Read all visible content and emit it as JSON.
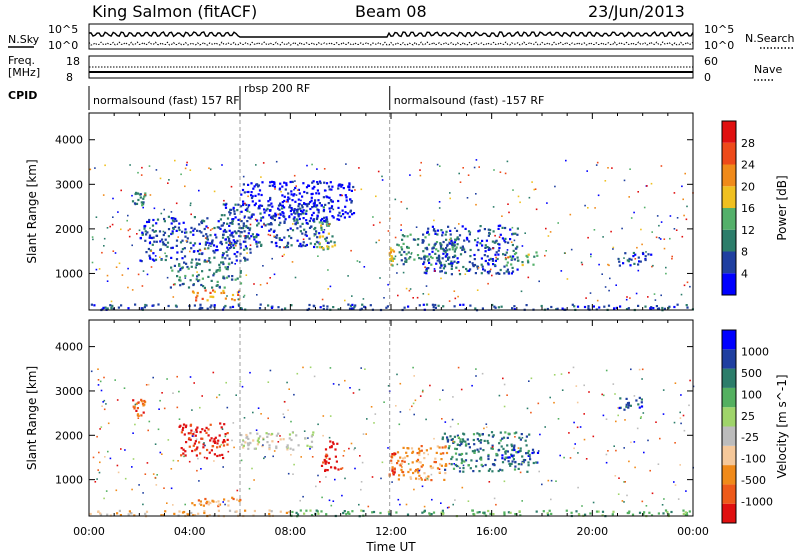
{
  "header": {
    "station": "King Salmon (fitACF)",
    "beam": "Beam 08",
    "date": "23/Jun/2013"
  },
  "top_panels": {
    "nsky_label": "N.Sky",
    "nsearch_label": "N.Search",
    "nsky_ticks": [
      "10^5",
      "10^0"
    ],
    "nsearch_ticks": [
      "10^5",
      "10^0"
    ],
    "freq_label_1": "Freq.",
    "freq_label_2": "[MHz]",
    "freq_ticks": [
      "18",
      "8"
    ],
    "nave_label": "Nave",
    "nave_ticks": [
      "60",
      "0"
    ],
    "cpid_label": "CPID",
    "cpid_segments": [
      {
        "text": "normalsound (fast) 157 RF",
        "start_hour": 0,
        "end_hour": 6.0
      },
      {
        "text": "rbsp 200 RF",
        "start_hour": 6.0,
        "end_hour": 11.95
      },
      {
        "text": "normalsound (fast) -157 RF",
        "start_hour": 11.95,
        "end_hour": 24
      }
    ]
  },
  "chart_data": [
    {
      "type": "heatmap",
      "name": "Power",
      "xlabel": "Time UT",
      "ylabel": "Slant Range [km]",
      "xlim": [
        0,
        24
      ],
      "ylim": [
        180,
        4600
      ],
      "x_ticks": [
        "00:00",
        "04:00",
        "08:00",
        "12:00",
        "16:00",
        "20:00",
        "00:00"
      ],
      "y_ticks": [
        1000,
        2000,
        3000,
        4000
      ],
      "colorbar": {
        "label": "Power [dB]",
        "ticks": [
          "28",
          "24",
          "20",
          "16",
          "12",
          "8",
          "4"
        ],
        "range": [
          0,
          30
        ],
        "colors": [
          "#0000ff",
          "#1f3fa0",
          "#2c7d6a",
          "#54b06a",
          "#f0c020",
          "#f08a1a",
          "#ee4a1a",
          "#e01010"
        ]
      },
      "regions": [
        {
          "t0": 1.7,
          "t1": 2.2,
          "r0": 2550,
          "r1": 2850,
          "level": 2
        },
        {
          "t0": 2.0,
          "t1": 6.5,
          "r0": 1300,
          "r1": 2300,
          "level": 1
        },
        {
          "t0": 3.2,
          "t1": 6.0,
          "r0": 700,
          "r1": 1300,
          "level": 2
        },
        {
          "t0": 4.0,
          "t1": 6.0,
          "r0": 420,
          "r1": 650,
          "level": 5
        },
        {
          "t0": 5.2,
          "t1": 9.5,
          "r0": 1600,
          "r1": 2600,
          "level": 1
        },
        {
          "t0": 6.0,
          "t1": 10.5,
          "r0": 2200,
          "r1": 3100,
          "level": 0
        },
        {
          "t0": 9.0,
          "t1": 9.8,
          "r0": 1500,
          "r1": 2200,
          "level": 3
        },
        {
          "t0": 11.9,
          "t1": 12.1,
          "r0": 1200,
          "r1": 1600,
          "level": 4
        },
        {
          "t0": 12.2,
          "t1": 14.6,
          "r0": 1200,
          "r1": 1900,
          "level": 2
        },
        {
          "t0": 13.2,
          "t1": 17.0,
          "r0": 1000,
          "r1": 2100,
          "level": 1
        },
        {
          "t0": 16.5,
          "t1": 17.8,
          "r0": 1200,
          "r1": 1500,
          "level": 3
        },
        {
          "t0": 21.0,
          "t1": 22.5,
          "r0": 1200,
          "r1": 1500,
          "level": 1
        },
        {
          "t0": 0.0,
          "t1": 24.0,
          "r0": 200,
          "r1": 330,
          "level": 1
        }
      ]
    },
    {
      "type": "heatmap",
      "name": "Velocity",
      "xlabel": "Time UT",
      "ylabel": "Slant Range [km]",
      "xlim": [
        0,
        24
      ],
      "ylim": [
        180,
        4600
      ],
      "x_ticks": [
        "00:00",
        "04:00",
        "08:00",
        "12:00",
        "16:00",
        "20:00",
        "00:00"
      ],
      "y_ticks": [
        1000,
        2000,
        3000,
        4000
      ],
      "colorbar": {
        "label": "Velocity [m s^-1]",
        "ticks": [
          "1000",
          "500",
          "100",
          "25",
          "-25",
          "-100",
          "-500",
          "-1000"
        ],
        "range": [
          -1200,
          1200
        ],
        "colors": [
          "#e01010",
          "#ee5a1a",
          "#f08a1a",
          "#f5c89a",
          "#bcbcbc",
          "#9fd46a",
          "#54b060",
          "#2c7d6a",
          "#1f3fa0",
          "#0000ff"
        ]
      },
      "regions": [
        {
          "t0": 1.7,
          "t1": 2.2,
          "r0": 2450,
          "r1": 2850,
          "level": 1
        },
        {
          "t0": 3.5,
          "t1": 5.5,
          "r0": 1500,
          "r1": 2300,
          "level": 0
        },
        {
          "t0": 4.0,
          "t1": 6.0,
          "r0": 420,
          "r1": 650,
          "level": 2
        },
        {
          "t0": 6.0,
          "t1": 9.0,
          "r0": 1700,
          "r1": 2100,
          "level": 4
        },
        {
          "t0": 9.2,
          "t1": 10.0,
          "r0": 1200,
          "r1": 1900,
          "level": 0
        },
        {
          "t0": 11.9,
          "t1": 12.2,
          "r0": 1100,
          "r1": 1700,
          "level": 1
        },
        {
          "t0": 12.2,
          "t1": 14.2,
          "r0": 1000,
          "r1": 1800,
          "level": 2
        },
        {
          "t0": 14.0,
          "t1": 17.5,
          "r0": 1200,
          "r1": 2100,
          "level": 7
        },
        {
          "t0": 16.3,
          "t1": 17.8,
          "r0": 1300,
          "r1": 1700,
          "level": 8
        },
        {
          "t0": 0.0,
          "t1": 8.0,
          "r0": 200,
          "r1": 330,
          "level": 3
        },
        {
          "t0": 8.0,
          "t1": 24.0,
          "r0": 200,
          "r1": 330,
          "level": 6
        },
        {
          "t0": 21.0,
          "t1": 22.0,
          "r0": 2600,
          "r1": 2900,
          "level": 8
        }
      ]
    }
  ]
}
